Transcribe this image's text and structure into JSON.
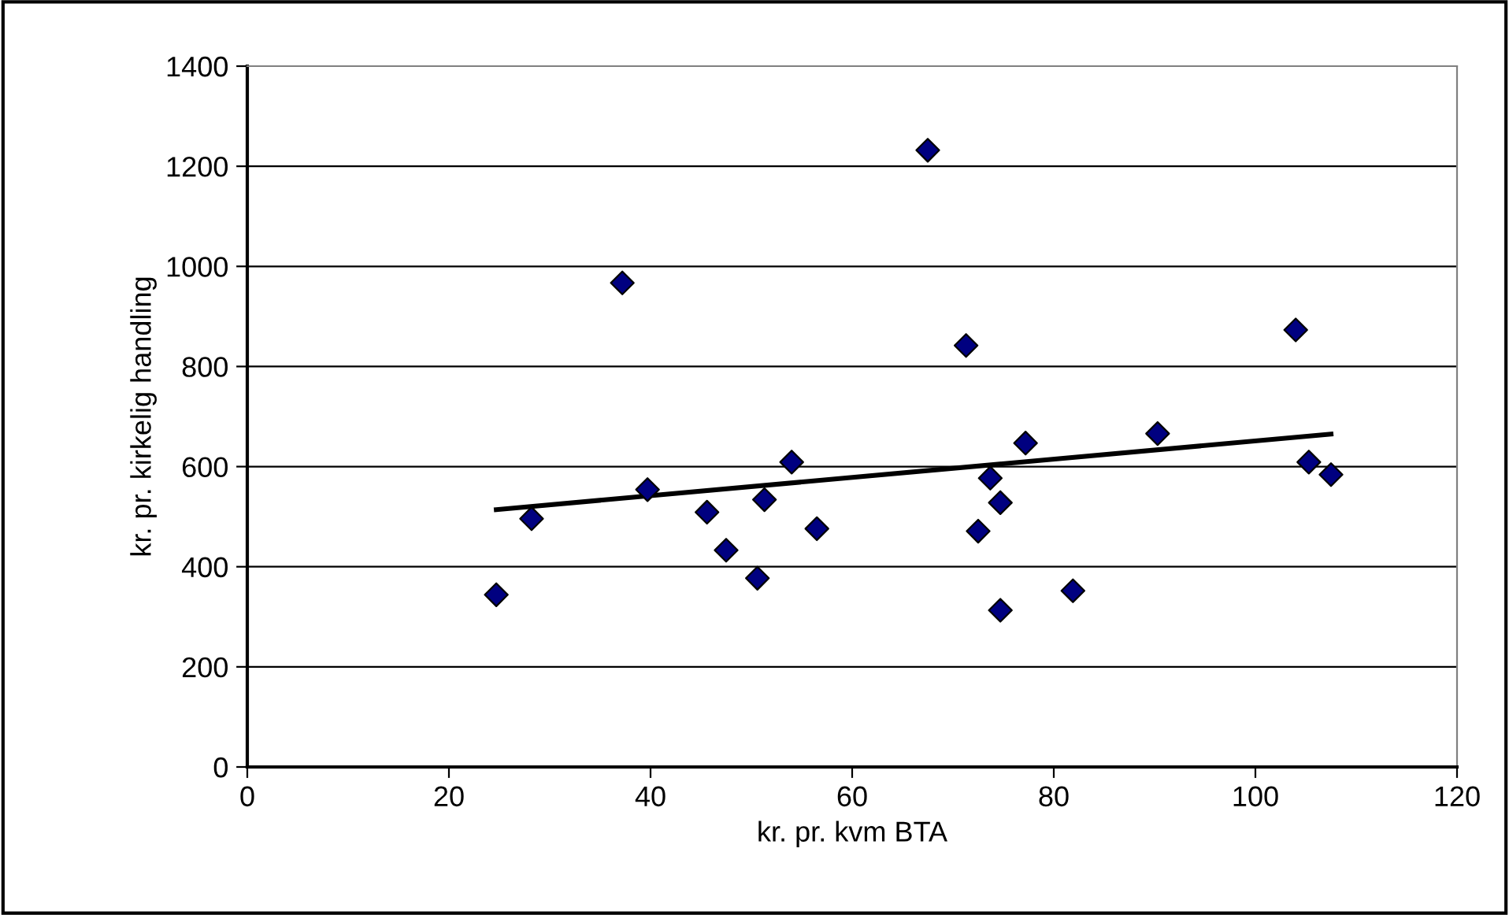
{
  "chart_data": {
    "type": "scatter",
    "xlabel": "kr. pr. kvm BTA",
    "ylabel": "kr. pr. kirkelig handling",
    "xlim": [
      0,
      120
    ],
    "xticks": [
      0,
      20,
      40,
      60,
      80,
      100,
      120
    ],
    "ylim": [
      0,
      1400
    ],
    "yticks": [
      0,
      200,
      400,
      600,
      800,
      1000,
      1200,
      1400
    ],
    "grid": "y",
    "marker": "diamond",
    "legend": false,
    "series": [
      {
        "color": "#000080",
        "x": [
          24.7,
          28.2,
          37.2,
          39.7,
          45.6,
          47.5,
          51.3,
          50.6,
          54.0,
          56.5,
          67.5,
          71.3,
          77.2,
          73.7,
          74.7,
          72.5,
          74.7,
          81.9,
          90.3,
          104.0,
          105.3,
          107.5
        ],
        "values": [
          344,
          496,
          967,
          554,
          509,
          433,
          534,
          377,
          609,
          476,
          1232,
          842,
          647,
          577,
          528,
          471,
          313,
          352,
          666,
          873,
          609,
          584
        ]
      },
      {
        "type": "line",
        "color": "#000000",
        "marker": "none",
        "line_style": "solid",
        "x": [
          24.7,
          107.5
        ],
        "values": [
          514,
          665
        ]
      }
    ]
  }
}
